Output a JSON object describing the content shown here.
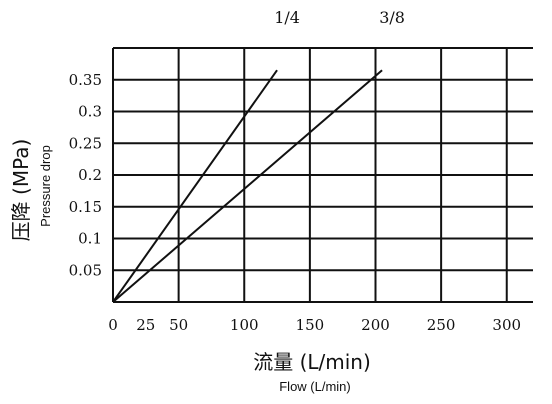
{
  "chart_data": {
    "type": "line",
    "title": "",
    "xlabel": "流量 (L/min)",
    "xlabel_en": "Flow (L/min)",
    "ylabel": "压降 (MPa)",
    "ylabel_en": "Pressure drop",
    "xlim": [
      0,
      320
    ],
    "ylim": [
      0,
      0.4
    ],
    "x_ticks": [
      0,
      25,
      50,
      100,
      150,
      200,
      250,
      300
    ],
    "x_tick_labels": [
      "0",
      "25",
      "50",
      "100",
      "150",
      "200",
      "250",
      "300"
    ],
    "x_grid": [
      0,
      50,
      100,
      150,
      200,
      250,
      300
    ],
    "y_ticks": [
      0.05,
      0.1,
      0.15,
      0.2,
      0.25,
      0.3,
      0.35
    ],
    "y_tick_labels": [
      "0.05",
      "0.1",
      "0.15",
      "0.2",
      "0.25",
      "0.3",
      "0.35"
    ],
    "y_grid": [
      0,
      0.05,
      0.1,
      0.15,
      0.2,
      0.25,
      0.3,
      0.35,
      0.4
    ],
    "grid": true,
    "series": [
      {
        "name": "1/4",
        "x": [
          0,
          125
        ],
        "y": [
          0,
          0.365
        ]
      },
      {
        "name": "3/8",
        "x": [
          0,
          205
        ],
        "y": [
          0,
          0.365
        ]
      }
    ]
  }
}
